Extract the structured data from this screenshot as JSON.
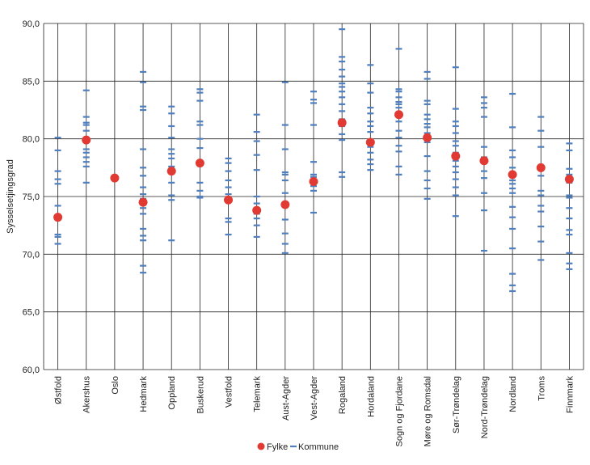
{
  "chart_data": {
    "type": "scatter",
    "ylabel": "Sysselsetjingsgrad",
    "ylim": [
      60,
      90
    ],
    "yticks": [
      "60,0",
      "65,0",
      "70,0",
      "75,0",
      "80,0",
      "85,0",
      "90,0"
    ],
    "grid": "horizontal and vertical",
    "legend_position": "bottom",
    "categories": [
      "Østfold",
      "Akershus",
      "Oslo",
      "Hedmark",
      "Oppland",
      "Buskerud",
      "Vestfold",
      "Telemark",
      "Aust-Agder",
      "Vest-Agder",
      "Rogaland",
      "Hordaland",
      "Sogn og Fjordane",
      "Møre og Romsdal",
      "Sør-Trøndelag",
      "Nord-Trøndelag",
      "Nordland",
      "Troms",
      "Finnmark"
    ],
    "series": [
      {
        "name": "Fylke",
        "color": "#e03a32",
        "marker": "circle",
        "values": [
          73.2,
          79.9,
          76.6,
          74.5,
          77.2,
          77.9,
          74.7,
          73.8,
          74.3,
          76.3,
          81.4,
          79.7,
          82.1,
          80.1,
          78.5,
          78.1,
          76.9,
          77.5,
          76.5
        ]
      },
      {
        "name": "Kommune",
        "color": "#4f7fbf",
        "marker": "dash",
        "values": [
          [
            80.1,
            79.0,
            77.2,
            76.5,
            76.1,
            74.2,
            73.0,
            71.7,
            71.5,
            70.9
          ],
          [
            84.2,
            81.9,
            81.4,
            81.2,
            80.7,
            79.8,
            79.1,
            78.8,
            78.4,
            78.0,
            77.6,
            76.2
          ],
          [],
          [
            85.8,
            84.9,
            82.8,
            82.5,
            79.1,
            77.5,
            76.8,
            75.8,
            75.2,
            74.8,
            74.0,
            73.5,
            72.2,
            71.6,
            71.2,
            69.0,
            68.4
          ],
          [
            82.8,
            82.2,
            81.1,
            80.1,
            79.1,
            78.7,
            78.3,
            77.6,
            76.2,
            75.1,
            74.7,
            71.2
          ],
          [
            84.3,
            84.0,
            83.3,
            81.5,
            81.2,
            80.0,
            79.2,
            78.0,
            76.2,
            75.5,
            75.0,
            74.9
          ],
          [
            78.3,
            77.9,
            77.2,
            76.4,
            75.8,
            75.2,
            73.1,
            72.8,
            71.7
          ],
          [
            82.1,
            80.6,
            79.8,
            78.6,
            77.3,
            75.0,
            74.4,
            73.5,
            73.1,
            72.5,
            71.5
          ],
          [
            84.9,
            81.2,
            79.1,
            77.1,
            76.9,
            76.4,
            75.3,
            74.1,
            73.0,
            71.8,
            70.9,
            70.1
          ],
          [
            84.1,
            83.4,
            83.1,
            81.2,
            78.0,
            76.9,
            76.7,
            76.3,
            75.9,
            75.5,
            73.6
          ],
          [
            89.5,
            87.1,
            86.7,
            86.0,
            85.4,
            84.8,
            84.5,
            84.1,
            83.6,
            83.0,
            82.4,
            81.7,
            81.1,
            80.4,
            79.9,
            77.1,
            76.7
          ],
          [
            86.4,
            84.8,
            84.0,
            82.7,
            82.2,
            81.5,
            81.1,
            80.6,
            79.7,
            79.3,
            78.8,
            78.2,
            77.8,
            77.3
          ],
          [
            87.8,
            84.3,
            84.1,
            83.6,
            83.2,
            83.0,
            82.7,
            82.2,
            81.5,
            80.7,
            80.1,
            79.4,
            78.9,
            77.6,
            76.9
          ],
          [
            85.8,
            85.2,
            83.3,
            83.0,
            82.1,
            81.7,
            81.3,
            81.0,
            80.5,
            80.0,
            79.7,
            78.5,
            77.2,
            76.4,
            75.7,
            74.8
          ],
          [
            86.2,
            82.6,
            81.5,
            81.1,
            80.5,
            79.8,
            79.4,
            78.8,
            78.1,
            77.6,
            77.1,
            76.5,
            75.8,
            75.1,
            73.3
          ],
          [
            83.6,
            83.1,
            82.7,
            81.9,
            79.3,
            78.4,
            77.9,
            77.2,
            76.6,
            75.3,
            73.8,
            70.3
          ],
          [
            83.9,
            81.0,
            79.0,
            78.4,
            77.5,
            76.8,
            76.4,
            76.1,
            75.7,
            75.3,
            74.1,
            73.2,
            72.2,
            70.5,
            68.3,
            67.3,
            66.8
          ],
          [
            81.9,
            80.7,
            79.3,
            77.6,
            76.8,
            75.5,
            75.1,
            74.2,
            73.7,
            72.4,
            71.1,
            69.5
          ],
          [
            79.6,
            79.0,
            77.4,
            76.9,
            76.2,
            75.1,
            74.9,
            74.0,
            73.1,
            72.1,
            71.7,
            70.1,
            69.2,
            68.7
          ]
        ]
      }
    ],
    "legend": [
      {
        "label": "Fylke",
        "marker": "circle",
        "color": "#e03a32"
      },
      {
        "label": "Kommune",
        "marker": "dash",
        "color": "#4f7fbf"
      }
    ]
  }
}
